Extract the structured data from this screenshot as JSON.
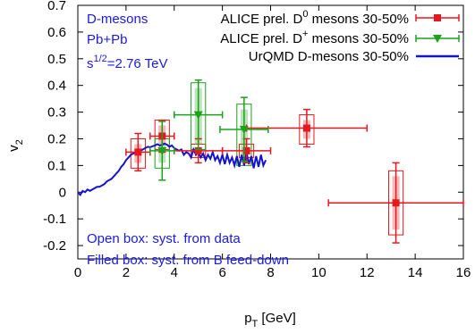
{
  "chart_data": {
    "type": "scatter",
    "xlabel_main": "p",
    "xlabel_sub": "T",
    "xlabel_unit": " [GeV]",
    "ylabel_main": "v",
    "ylabel_sub": "2",
    "xlim": [
      0,
      16
    ],
    "ylim": [
      -0.25,
      0.7
    ],
    "xticks": [
      "0",
      "2",
      "4",
      "6",
      "8",
      "10",
      "12",
      "14",
      "16"
    ],
    "yticks": [
      "-0.2",
      "-0.1",
      "0",
      "0.1",
      "0.2",
      "0.3",
      "0.4",
      "0.5",
      "0.6",
      "0.7"
    ],
    "annotations": {
      "line1": "D-mesons",
      "line2": "Pb+Pb",
      "line3_base": "s",
      "line3_sup": "1/2",
      "line3_rest": "=2.76 TeV",
      "box_open": "Open box: syst. from data",
      "box_filled": "Filled box: syst. from B feed-down"
    },
    "legend": {
      "d0": {
        "pre": "ALICE prel. D",
        "sup": "0",
        "post": " mesons 30-50%"
      },
      "dplus": {
        "pre": "ALICE prel. D",
        "sup": "+",
        "post": " mesons 30-50%"
      },
      "urqmd": "UrQMD D-mesons 30-50%"
    },
    "colors": {
      "d0": "#e8171d",
      "dplus": "#1aa21a",
      "urqmd": "#1414cc",
      "anno": "#1a1ae6"
    },
    "series": [
      {
        "name": "ALICE prel. D0 mesons 30-50%",
        "x": [
          2.5,
          3.5,
          5.0,
          7.0,
          9.5,
          13.2
        ],
        "y": [
          0.15,
          0.21,
          0.155,
          0.155,
          0.24,
          -0.04
        ],
        "xerr": [
          0.5,
          0.5,
          1.0,
          1.0,
          2.5,
          2.8
        ],
        "yerr": [
          0.07,
          0.06,
          0.045,
          0.045,
          0.07,
          0.15
        ],
        "syst": [
          [
            0.09,
            0.2
          ],
          [
            0.16,
            0.27
          ],
          [
            0.13,
            0.18
          ],
          [
            0.13,
            0.18
          ],
          [
            0.18,
            0.29
          ],
          [
            -0.16,
            0.08
          ]
        ]
      },
      {
        "name": "ALICE prel. D+ mesons 30-50%",
        "x": [
          3.5,
          5.0,
          6.9
        ],
        "y": [
          0.155,
          0.29,
          0.235
        ],
        "xerr": [
          0.5,
          1.0,
          1.0
        ],
        "yerr": [
          0.11,
          0.13,
          0.12
        ],
        "syst": [
          [
            0.09,
            0.2
          ],
          [
            0.16,
            0.41
          ],
          [
            0.1,
            0.33
          ]
        ]
      },
      {
        "name": "UrQMD D-mesons 30-50%",
        "x": [
          0.0,
          0.1,
          0.2,
          0.3,
          0.4,
          0.5,
          0.6,
          0.7,
          0.8,
          0.9,
          1.0,
          1.1,
          1.2,
          1.3,
          1.4,
          1.5,
          1.6,
          1.7,
          1.8,
          1.9,
          2.0,
          2.1,
          2.2,
          2.3,
          2.4,
          2.5,
          2.6,
          2.7,
          2.8,
          2.9,
          3.0,
          3.1,
          3.2,
          3.3,
          3.4,
          3.5,
          3.6,
          3.7,
          3.8,
          3.9,
          4.0,
          4.1,
          4.2,
          4.3,
          4.4,
          4.5,
          4.6,
          4.7,
          4.8,
          4.9,
          5.0,
          5.1,
          5.2,
          5.3,
          5.4,
          5.5,
          5.6,
          5.7,
          5.8,
          5.9,
          6.0,
          6.1,
          6.2,
          6.3,
          6.4,
          6.5,
          6.6,
          6.7,
          6.8,
          6.9,
          7.0,
          7.1,
          7.2,
          7.3,
          7.4,
          7.5,
          7.6,
          7.7,
          7.8
        ],
        "y": [
          0.0,
          -0.01,
          0.005,
          0.0,
          0.01,
          0.005,
          0.01,
          0.015,
          0.02,
          0.02,
          0.025,
          0.03,
          0.04,
          0.045,
          0.05,
          0.06,
          0.07,
          0.08,
          0.095,
          0.105,
          0.12,
          0.13,
          0.14,
          0.145,
          0.15,
          0.148,
          0.155,
          0.16,
          0.165,
          0.17,
          0.168,
          0.172,
          0.175,
          0.18,
          0.175,
          0.178,
          0.182,
          0.178,
          0.17,
          0.175,
          0.165,
          0.16,
          0.155,
          0.16,
          0.14,
          0.15,
          0.145,
          0.13,
          0.16,
          0.14,
          0.15,
          0.13,
          0.145,
          0.12,
          0.14,
          0.125,
          0.15,
          0.12,
          0.135,
          0.11,
          0.14,
          0.105,
          0.14,
          0.11,
          0.13,
          0.1,
          0.135,
          0.095,
          0.14,
          0.1,
          0.15,
          0.105,
          0.135,
          0.09,
          0.135,
          0.095,
          0.14,
          0.1,
          0.12
        ]
      }
    ]
  }
}
